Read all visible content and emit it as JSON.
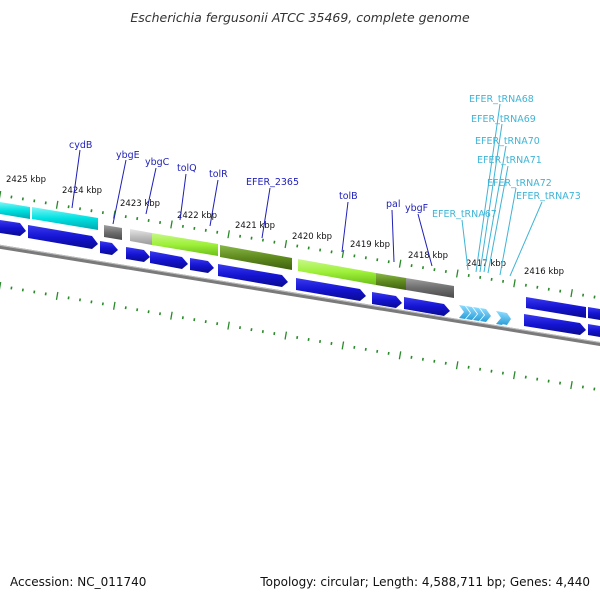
{
  "title": "Escherichia fergusonii ATCC 35469, complete genome",
  "footer": {
    "accession": "Accession: NC_011740",
    "summary": "Topology: circular; Length: 4,588,711 bp; Genes: 4,440"
  },
  "scale": {
    "labels": [
      "2425 kbp",
      "2424 kbp",
      "2423 kbp",
      "2422 kbp",
      "2421 kbp",
      "2420 kbp",
      "2419 kbp",
      "2418 kbp",
      "2417 kbp",
      "2416 kbp"
    ]
  },
  "genes": [
    {
      "name": "cydB"
    },
    {
      "name": "ybgE"
    },
    {
      "name": "ybgC"
    },
    {
      "name": "tolQ"
    },
    {
      "name": "tolR"
    },
    {
      "name": "EFER_2365"
    },
    {
      "name": "tolB"
    },
    {
      "name": "pal"
    },
    {
      "name": "ybgF"
    }
  ],
  "trnas": [
    {
      "name": "EFER_tRNA68"
    },
    {
      "name": "EFER_tRNA69"
    },
    {
      "name": "EFER_tRNA70"
    },
    {
      "name": "EFER_tRNA71"
    },
    {
      "name": "EFER_tRNA72"
    },
    {
      "name": "EFER_tRNA73"
    },
    {
      "name": "EFER_tRNA67"
    }
  ],
  "colors": {
    "cds": "#1414d2",
    "trna": "#3fb4e8",
    "cyan_feature": "#00e5e5",
    "lime_feature": "#9ef03a",
    "olive_feature": "#5f8a1e",
    "gray_feature": "#6e6e6e",
    "light_gray_feature": "#bdbdbd",
    "ticks": "#2a8a2a",
    "backbone": "#7a7a7a"
  }
}
